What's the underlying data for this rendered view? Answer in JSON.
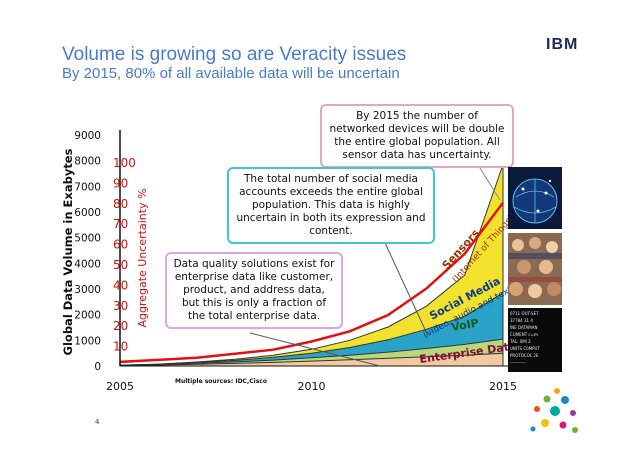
{
  "slide": {
    "title": "Volume is growing so are Veracity issues",
    "subtitle": "By 2015, 80% of all available data will be uncertain",
    "logo": "IBM",
    "page_number": "4",
    "source_note": "Multiple sources: IDC,Cisco"
  },
  "callouts": [
    "By 2015 the number of networked devices will be double the entire global population. All sensor data has uncertainty.",
    "The total number of social media accounts exceeds the entire global population. This data is highly uncertain in both its expression and content.",
    "Data quality solutions exist for enterprise data like customer, product, and address data, but this is only a fraction of the total enterprise data."
  ],
  "colors": {
    "enterprise": "#f2c9a0",
    "voip": "#b8d97a",
    "social": "#2aa3c9",
    "sensors": "#f2e22e",
    "uncertainty_line": "#e11111",
    "title_blue": "#4a7bc8"
  },
  "chart_data": {
    "type": "area",
    "stacked": true,
    "x": [
      2005,
      2006,
      2007,
      2008,
      2009,
      2010,
      2011,
      2012,
      2013,
      2014,
      2015
    ],
    "xticks": [
      "2005",
      "2010",
      "2015"
    ],
    "series": [
      {
        "name": "Enterprise Data",
        "values": [
          20,
          40,
          70,
          100,
          140,
          190,
          240,
          300,
          360,
          420,
          500
        ]
      },
      {
        "name": "VoIP",
        "values": [
          10,
          20,
          40,
          60,
          90,
          130,
          180,
          240,
          320,
          420,
          550
        ]
      },
      {
        "name": "Social Media",
        "sublabel": "(video, audio and text)",
        "values": [
          0,
          10,
          30,
          60,
          110,
          180,
          300,
          480,
          750,
          1100,
          1800
        ]
      },
      {
        "name": "Sensors",
        "sublabel": "(Internet of Things)",
        "values": [
          0,
          5,
          15,
          40,
          80,
          150,
          280,
          500,
          900,
          1600,
          5000
        ]
      }
    ],
    "line": {
      "axis": "right",
      "x": [
        2005,
        2006,
        2007,
        2008,
        2009,
        2010,
        2011,
        2012,
        2013,
        2014,
        2015
      ],
      "values": [
        2,
        3,
        4,
        6,
        8,
        12,
        17,
        25,
        38,
        55,
        80
      ]
    },
    "ylabel": "Global Data Volume in Exabytes",
    "y2label": "Aggregate Uncertainty %",
    "ylim": [
      0,
      9000
    ],
    "yticks": [
      0,
      1000,
      2000,
      3000,
      4000,
      5000,
      6000,
      7000,
      8000,
      9000
    ],
    "y2lim": [
      0,
      100
    ],
    "y2ticks": [
      10,
      20,
      30,
      40,
      50,
      60,
      70,
      80,
      90,
      100
    ]
  },
  "photos": [
    "globe-network-photo",
    "crowd-photo",
    "data-text-photo"
  ]
}
